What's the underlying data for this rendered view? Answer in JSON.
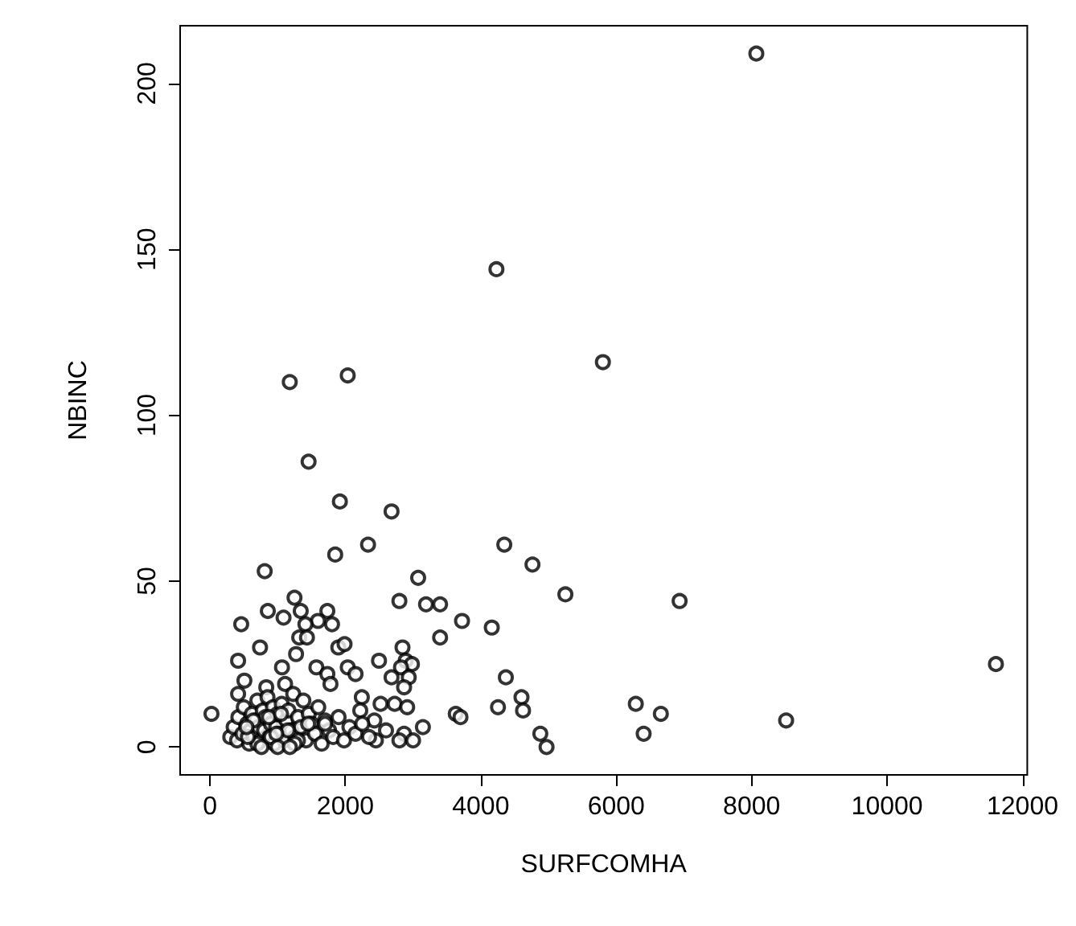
{
  "chart_data": {
    "type": "scatter",
    "xlabel": "SURFCOMHA",
    "ylabel": "NBINC",
    "marker": "circle",
    "grid": false,
    "xlim": [
      -440,
      12070
    ],
    "ylim": [
      -8.4,
      217.4
    ],
    "xticks": [
      0,
      2000,
      4000,
      6000,
      8000,
      10000,
      12000
    ],
    "yticks": [
      0,
      50,
      100,
      150,
      200
    ],
    "x": [
      8069,
      4231,
      5803,
      1179,
      2035,
      1457,
      1919,
      2682,
      4347,
      4763,
      5249,
      6936,
      3723,
      4162,
      4370,
      4601,
      4254,
      4624,
      4879,
      4971,
      6289,
      6659,
      6405,
      8509,
      11607,
      3630,
      3700,
      1850,
      2335,
      809,
      3075,
      1249,
      2798,
      3191,
      3399,
      3399,
      1341,
      855,
      1087,
      1734,
      1595,
      1803,
      1410,
      462,
      1318,
      1433,
      740,
      1896,
      1988,
      2844,
      2890,
      2983,
      1272,
      416,
      2497,
      2035,
      2150,
      1064,
      1572,
      1734,
      2821,
      2682,
      2936,
      2867,
      509,
      416,
      832,
      1110,
      1780,
      2243,
      2520,
      2728,
      2913,
      23,
      2220,
      2428,
      3145,
      2867,
      2451,
      2798,
      300,
      350,
      400,
      420,
      480,
      500,
      550,
      580,
      600,
      620,
      650,
      680,
      700,
      720,
      750,
      780,
      800,
      820,
      850,
      880,
      900,
      930,
      950,
      980,
      1000,
      1030,
      1060,
      1100,
      1130,
      1160,
      1200,
      1230,
      1260,
      1300,
      1340,
      1380,
      1420,
      1460,
      1500,
      1550,
      1600,
      1650,
      1700,
      1760,
      1820,
      1900,
      1980,
      2060,
      2150,
      2250,
      2350,
      2600,
      3000,
      640,
      700,
      760,
      900,
      1000,
      1150,
      1300,
      1450,
      560,
      870,
      1050,
      1250,
      540,
      980,
      1180,
      1700
    ],
    "values": [
      209,
      144,
      116,
      110,
      112,
      86,
      74,
      71,
      61,
      55,
      46,
      44,
      38,
      36,
      21,
      15,
      12,
      11,
      4,
      0,
      13,
      10,
      4,
      8,
      25,
      10,
      9,
      58,
      61,
      53,
      51,
      45,
      44,
      43,
      43,
      33,
      41,
      41,
      39,
      41,
      38,
      37,
      37,
      37,
      33,
      33,
      30,
      30,
      31,
      30,
      26,
      25,
      28,
      26,
      26,
      24,
      22,
      24,
      24,
      22,
      24,
      21,
      21,
      18,
      20,
      16,
      18,
      19,
      19,
      15,
      13,
      13,
      12,
      10,
      11,
      8,
      6,
      4,
      2,
      2,
      3,
      6,
      2,
      9,
      4,
      12,
      7,
      1,
      5,
      10,
      3,
      8,
      14,
      6,
      2,
      11,
      5,
      9,
      15,
      3,
      7,
      12,
      1,
      6,
      10,
      4,
      13,
      2,
      8,
      11,
      5,
      16,
      3,
      9,
      6,
      14,
      2,
      10,
      7,
      4,
      12,
      1,
      8,
      5,
      3,
      9,
      2,
      6,
      4,
      7,
      3,
      5,
      2,
      8,
      1,
      0,
      3,
      0,
      5,
      2,
      7,
      3,
      9,
      10,
      1,
      6,
      4,
      0,
      7
    ]
  }
}
